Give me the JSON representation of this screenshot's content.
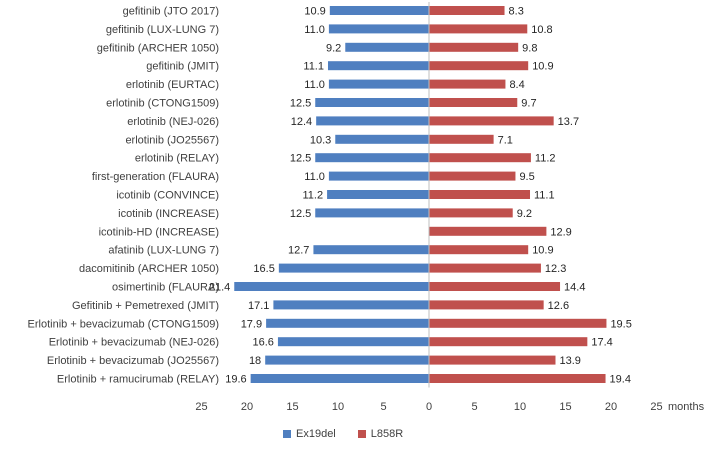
{
  "chart_data": {
    "type": "bar",
    "orientation": "horizontal-butterfly",
    "categories": [
      "gefitinib (JTO 2017)",
      "gefitinib (LUX-LUNG 7)",
      "gefitinib (ARCHER 1050)",
      "gefitinib (JMIT)",
      "erlotinib (EURTAC)",
      "erlotinib (CTONG1509)",
      "erlotinib (NEJ-026)",
      "erlotinib (JO25567)",
      "erlotinib (RELAY)",
      "first-generation (FLAURA)",
      "icotinib (CONVINCE)",
      "icotinib (INCREASE)",
      "icotinib-HD (INCREASE)",
      "afatinib (LUX-LUNG 7)",
      "dacomitinib (ARCHER 1050)",
      "osimertinib (FLAURA)",
      "Gefitinib + Pemetrexed (JMIT)",
      "Erlotinib + bevacizumab (CTONG1509)",
      "Erlotinib + bevacizumab (NEJ-026)",
      "Erlotinib + bevacizumab (JO25567)",
      "Erlotinib + ramucirumab (RELAY)"
    ],
    "series": [
      {
        "name": "Ex19del",
        "color": "#4f7fc0",
        "direction": "left",
        "values": [
          10.9,
          11.0,
          9.2,
          11.1,
          11.0,
          12.5,
          12.4,
          10.3,
          12.5,
          11.0,
          11.2,
          12.5,
          null,
          12.7,
          16.5,
          21.4,
          17.1,
          17.9,
          16.6,
          18,
          19.6
        ],
        "labels": [
          "10.9",
          "11.0",
          "9.2",
          "11.1",
          "11.0",
          "12.5",
          "12.4",
          "10.3",
          "12.5",
          "11.0",
          "11.2",
          "12.5",
          "",
          "12.7",
          "16.5",
          "21.4",
          "17.1",
          "17.9",
          "16.6",
          "18",
          "19.6"
        ]
      },
      {
        "name": "L858R",
        "color": "#c0504d",
        "direction": "right",
        "values": [
          8.3,
          10.8,
          9.8,
          10.9,
          8.4,
          9.7,
          13.7,
          7.1,
          11.2,
          9.5,
          11.1,
          9.2,
          12.9,
          10.9,
          12.3,
          14.4,
          12.6,
          19.5,
          17.4,
          13.9,
          19.4
        ],
        "labels": [
          "8.3",
          "10.8",
          "9.8",
          "10.9",
          "8.4",
          "9.7",
          "13.7",
          "7.1",
          "11.2",
          "9.5",
          "11.1",
          "9.2",
          "12.9",
          "10.9",
          "12.3",
          "14.4",
          "12.6",
          "19.5",
          "17.4",
          "13.9",
          "19.4"
        ]
      }
    ],
    "xaxis": {
      "ticks": [
        "25",
        "20",
        "15",
        "10",
        "5",
        "0",
        "5",
        "10",
        "15",
        "20",
        "25"
      ],
      "tick_values": [
        -25,
        -20,
        -15,
        -10,
        -5,
        0,
        5,
        10,
        15,
        20,
        25
      ],
      "range": [
        -25,
        25
      ],
      "label": "months"
    },
    "grid": false,
    "legend_position": "bottom"
  }
}
